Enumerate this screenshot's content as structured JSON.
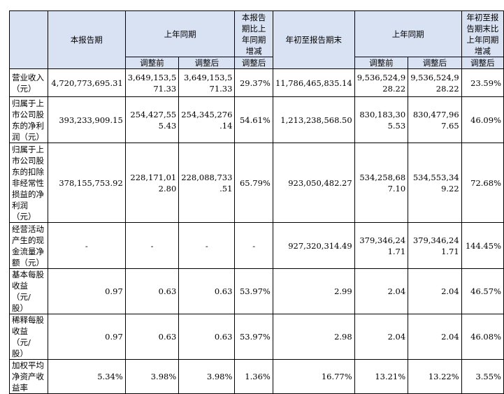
{
  "header": {
    "item": "",
    "current_period": "本报告期",
    "prior_period": "上年同期",
    "change_vs_prior_line1": "本报告",
    "change_vs_prior_line2": "期比上",
    "change_vs_prior_line3": "年同期",
    "change_vs_prior_line4": "增减",
    "ytd": "年初至报告期末",
    "prior_ytd": "上年同期",
    "ytd_change_line1": "年初至报",
    "ytd_change_line2": "告期末比",
    "ytd_change_line3": "上年同期",
    "ytd_change_line4": "增减",
    "before_adj": "调整前",
    "after_adj": "调整后",
    "after_adj_change": "调整后",
    "before_adj_ytd": "调整前",
    "after_adj_ytd": "调整后",
    "after_adj_ytd_change": "调整后"
  },
  "rows": [
    {
      "label": [
        "营业收入",
        "（元）"
      ],
      "current": "4,720,773,695.31",
      "prior_before": [
        "3,649,153,5",
        "71.33"
      ],
      "prior_after": [
        "3,649,153,5",
        "71.33"
      ],
      "change": "29.37%",
      "ytd": "11,786,465,835.14",
      "prior_ytd_before": [
        "9,536,524,9",
        "28.22"
      ],
      "prior_ytd_after": [
        "9,536,524,9",
        "28.22"
      ],
      "ytd_change": "23.59%"
    },
    {
      "label": [
        "归属于上",
        "市公司股",
        "东的净利",
        "润（元）"
      ],
      "current": "393,233,909.15",
      "prior_before": [
        "254,427,55",
        "5.43"
      ],
      "prior_after": [
        "254,345,276",
        ".14"
      ],
      "change": "54.61%",
      "ytd": "1,213,238,568.50",
      "prior_ytd_before": [
        "830,183,30",
        "5.53"
      ],
      "prior_ytd_after": [
        "830,477,96",
        "7.65"
      ],
      "ytd_change": "46.09%"
    },
    {
      "label": [
        "归属于上",
        "市公司股",
        "东的扣除",
        "非经常性",
        "损益的净",
        "利润",
        "（元）"
      ],
      "current": "378,155,753.92",
      "prior_before": [
        "228,171,01",
        "2.80"
      ],
      "prior_after": [
        "228,088,733",
        ".51"
      ],
      "change": "65.79%",
      "ytd": "923,050,482.27",
      "prior_ytd_before": [
        "534,258,68",
        "7.10"
      ],
      "prior_ytd_after": [
        "534,553,34",
        "9.22"
      ],
      "ytd_change": "72.68%"
    },
    {
      "label": [
        "经营活动",
        "产生的现",
        "金流量净",
        "额（元）"
      ],
      "current": "-",
      "prior_before": [
        "-"
      ],
      "prior_after": [
        "-"
      ],
      "change": "-",
      "ytd": "927,320,314.49",
      "prior_ytd_before": [
        "379,346,24",
        "1.71"
      ],
      "prior_ytd_after": [
        "379,346,24",
        "1.71"
      ],
      "ytd_change": "144.45%"
    },
    {
      "label": [
        "基本每股",
        "收益（元/",
        "股）"
      ],
      "current": "0.97",
      "prior_before": [
        "0.63"
      ],
      "prior_after": [
        "0.63"
      ],
      "change": "53.97%",
      "ytd": "2.99",
      "prior_ytd_before": [
        "2.04"
      ],
      "prior_ytd_after": [
        "2.04"
      ],
      "ytd_change": "46.57%"
    },
    {
      "label": [
        "稀释每股",
        "收益（元/",
        "股）"
      ],
      "current": "0.97",
      "prior_before": [
        "0.63"
      ],
      "prior_after": [
        "0.63"
      ],
      "change": "53.97%",
      "ytd": "2.98",
      "prior_ytd_before": [
        "2.04"
      ],
      "prior_ytd_after": [
        "2.04"
      ],
      "ytd_change": "46.08%"
    },
    {
      "label": [
        "加权平均",
        "净资产收",
        "益率"
      ],
      "current": "5.34%",
      "prior_before": [
        "3.98%"
      ],
      "prior_after": [
        "3.98%"
      ],
      "change": "1.36%",
      "ytd": "16.77%",
      "prior_ytd_before": [
        "13.21%"
      ],
      "prior_ytd_after": [
        "13.22%"
      ],
      "ytd_change": "3.55%"
    }
  ]
}
